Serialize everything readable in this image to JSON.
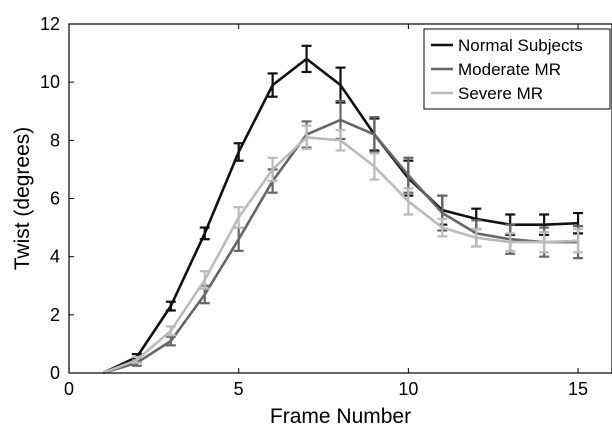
{
  "chart_data": {
    "type": "line",
    "title": "",
    "xlabel": "Frame Number",
    "ylabel": "Twist (degrees)",
    "xlim": [
      0,
      16
    ],
    "ylim": [
      0,
      12
    ],
    "xticks": [
      0,
      5,
      10,
      15
    ],
    "yticks": [
      0,
      2,
      4,
      6,
      8,
      10,
      12
    ],
    "grid": false,
    "legend_position": "top-right",
    "x": [
      1,
      2,
      3,
      4,
      5,
      6,
      7,
      8,
      9,
      10,
      11,
      12,
      13,
      14,
      15
    ],
    "series": [
      {
        "name": "Normal Subjects",
        "color": "#111111",
        "values": [
          0.0,
          0.55,
          2.3,
          4.8,
          7.6,
          9.9,
          10.8,
          9.9,
          8.2,
          6.7,
          5.6,
          5.3,
          5.1,
          5.1,
          5.15
        ],
        "errors": [
          0.0,
          0.1,
          0.15,
          0.2,
          0.3,
          0.4,
          0.45,
          0.6,
          0.55,
          0.6,
          0.5,
          0.35,
          0.35,
          0.35,
          0.35
        ]
      },
      {
        "name": "Moderate MR",
        "color": "#666666",
        "values": [
          0.0,
          0.35,
          1.1,
          2.7,
          4.6,
          6.6,
          8.2,
          8.7,
          8.2,
          6.8,
          5.5,
          4.8,
          4.6,
          4.5,
          4.5
        ],
        "errors": [
          0.0,
          0.1,
          0.15,
          0.3,
          0.4,
          0.4,
          0.45,
          0.65,
          0.6,
          0.6,
          0.6,
          0.45,
          0.5,
          0.5,
          0.55
        ]
      },
      {
        "name": "Severe MR",
        "color": "#bbbbbb",
        "values": [
          0.0,
          0.45,
          1.45,
          3.2,
          5.35,
          7.0,
          8.1,
          8.0,
          7.1,
          5.9,
          5.0,
          4.65,
          4.5,
          4.5,
          4.55
        ],
        "errors": [
          0.0,
          0.1,
          0.15,
          0.3,
          0.35,
          0.4,
          0.4,
          0.35,
          0.45,
          0.45,
          0.3,
          0.3,
          0.3,
          0.35,
          0.4
        ]
      }
    ]
  }
}
